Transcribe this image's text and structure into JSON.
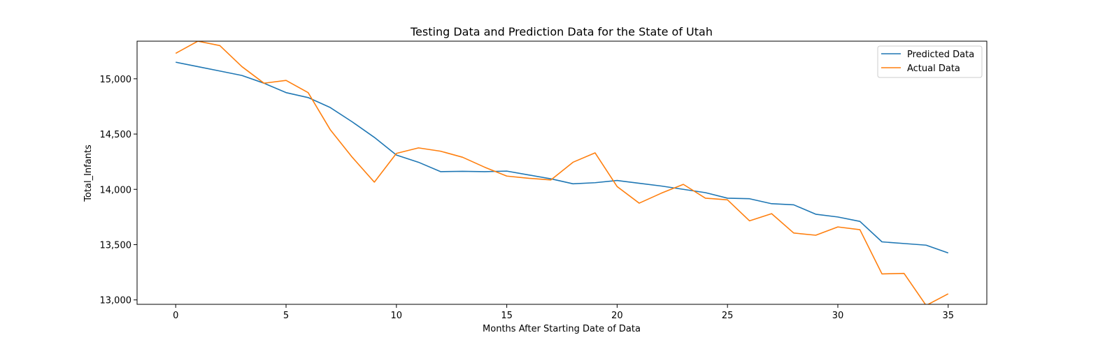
{
  "chart_data": {
    "type": "line",
    "title": "Testing Data and Prediction Data for the State of Utah",
    "xlabel": "Months After Starting Date of Data",
    "ylabel": "Total_Infants",
    "xlim": [
      -1.75,
      36.75
    ],
    "ylim": [
      12960,
      15340
    ],
    "x_ticks": [
      0,
      5,
      10,
      15,
      20,
      25,
      30,
      35
    ],
    "x_tick_labels": [
      "0",
      "5",
      "10",
      "15",
      "20",
      "25",
      "30",
      "35"
    ],
    "y_ticks": [
      13000,
      13500,
      14000,
      14500,
      15000
    ],
    "y_tick_labels": [
      "13,000",
      "13,500",
      "14,000",
      "14,500",
      "15,000"
    ],
    "grid": false,
    "legend_position": "top-right",
    "x": [
      0,
      1,
      2,
      3,
      4,
      5,
      6,
      7,
      8,
      9,
      10,
      11,
      12,
      13,
      14,
      15,
      16,
      17,
      18,
      19,
      20,
      21,
      22,
      23,
      24,
      25,
      26,
      27,
      28,
      29,
      30,
      31,
      32,
      33,
      34,
      35
    ],
    "series": [
      {
        "name": "Predicted Data",
        "color": "#1f77b4",
        "values": [
          15150,
          15110,
          15070,
          15030,
          14960,
          14875,
          14830,
          14740,
          14610,
          14470,
          14310,
          14245,
          14160,
          14163,
          14160,
          14165,
          14130,
          14095,
          14050,
          14060,
          14080,
          14055,
          14030,
          14000,
          13970,
          13920,
          13915,
          13870,
          13860,
          13775,
          13750,
          13710,
          13525,
          13510,
          13495,
          13425
        ]
      },
      {
        "name": "Actual Data",
        "color": "#ff7f0e",
        "values": [
          15230,
          15340,
          15300,
          15110,
          14960,
          14985,
          14875,
          14540,
          14290,
          14065,
          14325,
          14375,
          14345,
          14290,
          14200,
          14120,
          14100,
          14085,
          14245,
          14330,
          14025,
          13875,
          13965,
          14045,
          13920,
          13905,
          13715,
          13780,
          13605,
          13585,
          13660,
          13635,
          13235,
          13240,
          12950,
          13055
        ]
      }
    ]
  }
}
